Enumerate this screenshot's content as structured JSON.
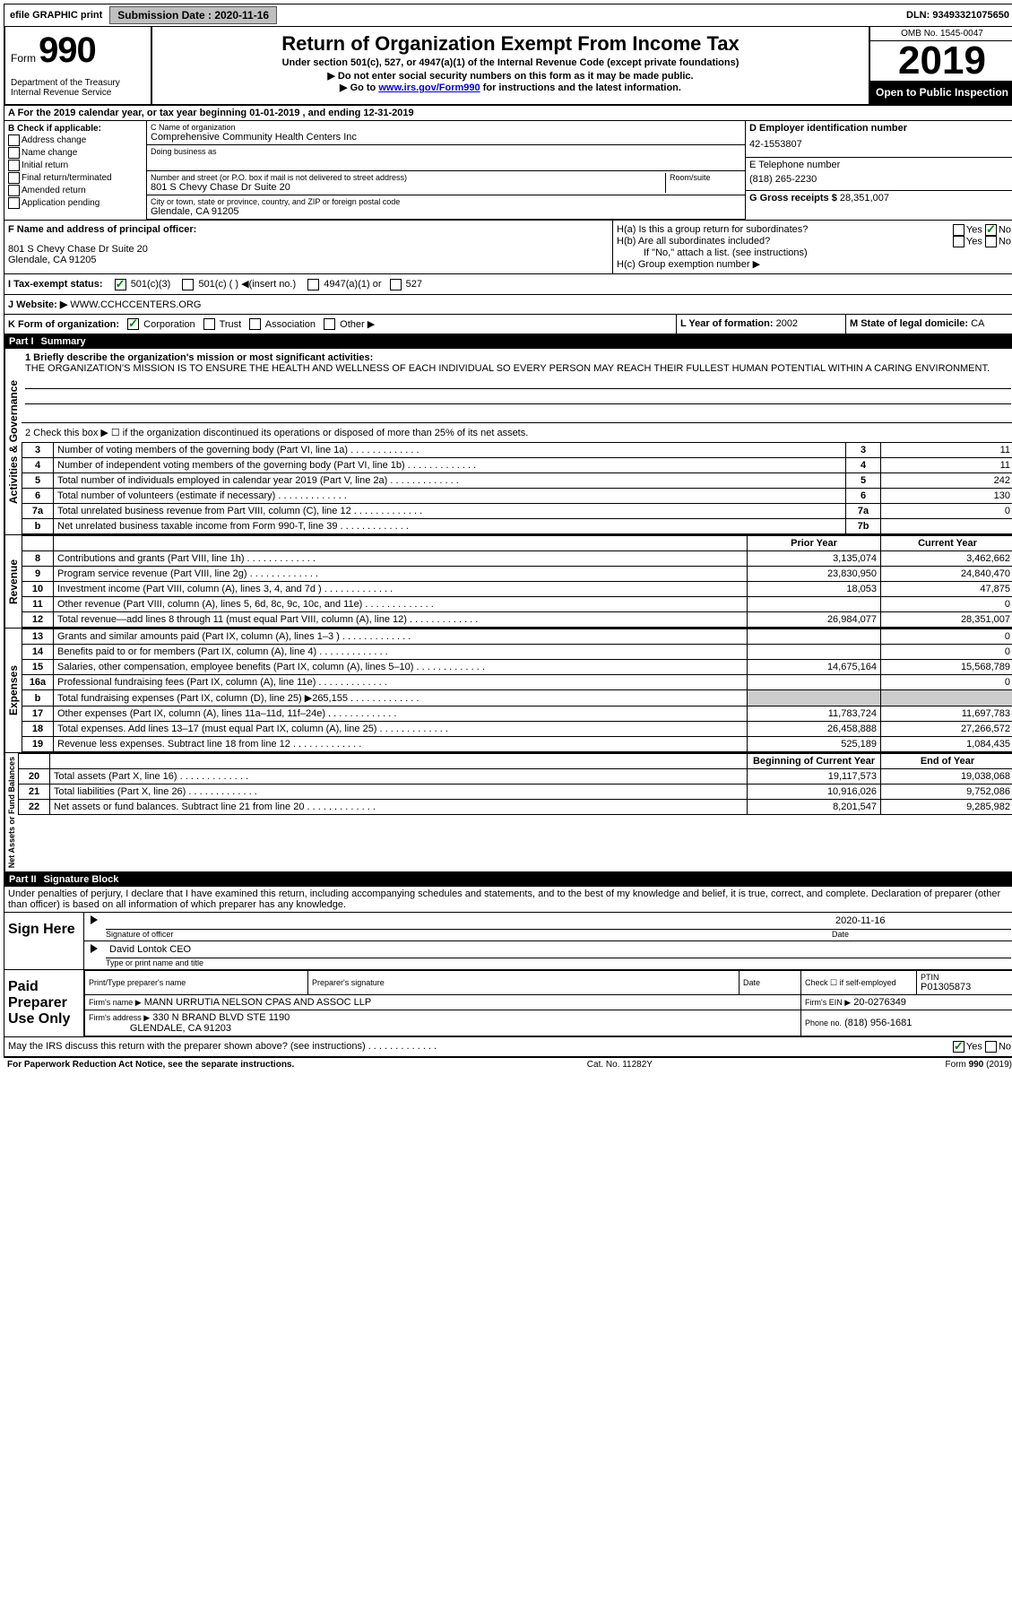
{
  "topbar": {
    "efile": "efile GRAPHIC print",
    "sub_label": "Submission Date :",
    "sub_date": "2020-11-16",
    "dln_label": "DLN:",
    "dln": "93493321075650"
  },
  "header": {
    "form_prefix": "Form",
    "form_num": "990",
    "dept": "Department of the Treasury\nInternal Revenue Service",
    "title": "Return of Organization Exempt From Income Tax",
    "sub1": "Under section 501(c), 527, or 4947(a)(1) of the Internal Revenue Code (except private foundations)",
    "sub2": "▶ Do not enter social security numbers on this form as it may be made public.",
    "sub3_pre": "▶ Go to ",
    "sub3_link": "www.irs.gov/Form990",
    "sub3_post": " for instructions and the latest information.",
    "omb": "OMB No. 1545-0047",
    "year": "2019",
    "inspect": "Open to Public Inspection"
  },
  "lineA": "A For the 2019 calendar year, or tax year beginning 01-01-2019   , and ending 12-31-2019",
  "boxB": {
    "title": "B Check if applicable:",
    "items": [
      "Address change",
      "Name change",
      "Initial return",
      "Final return/terminated",
      "Amended return",
      "Application pending"
    ]
  },
  "boxC": {
    "name_label": "C Name of organization",
    "name": "Comprehensive Community Health Centers Inc",
    "dba_label": "Doing business as",
    "addr_label": "Number and street (or P.O. box if mail is not delivered to street address)",
    "room_label": "Room/suite",
    "addr": "801 S Chevy Chase Dr Suite 20",
    "city_label": "City or town, state or province, country, and ZIP or foreign postal code",
    "city": "Glendale, CA  91205"
  },
  "boxD": {
    "label": "D Employer identification number",
    "val": "42-1553807"
  },
  "boxE": {
    "label": "E Telephone number",
    "val": "(818) 265-2230"
  },
  "boxG": {
    "label": "G Gross receipts $",
    "val": "28,351,007"
  },
  "boxF": {
    "label": "F  Name and address of principal officer:",
    "addr1": "801 S Chevy Chase Dr Suite 20",
    "addr2": "Glendale, CA  91205"
  },
  "boxH": {
    "a": "H(a)  Is this a group return for subordinates?",
    "b": "H(b)  Are all subordinates included?",
    "b_note": "If \"No,\" attach a list. (see instructions)",
    "c": "H(c)  Group exemption number ▶"
  },
  "boxI": {
    "label": "I  Tax-exempt status:",
    "opts": [
      "501(c)(3)",
      "501(c) (  ) ◀(insert no.)",
      "4947(a)(1) or",
      "527"
    ]
  },
  "boxJ": {
    "label": "J  Website: ▶",
    "val": "WWW.CCHCCENTERS.ORG"
  },
  "boxK": {
    "label": "K Form of organization:",
    "opts": [
      "Corporation",
      "Trust",
      "Association",
      "Other ▶"
    ]
  },
  "boxL": {
    "label": "L Year of formation:",
    "val": "2002"
  },
  "boxM": {
    "label": "M State of legal domicile:",
    "val": "CA"
  },
  "part1": {
    "header_num": "Part I",
    "header_title": "Summary",
    "q1_label": "1  Briefly describe the organization's mission or most significant activities:",
    "q1_text": "THE ORGANIZATION'S MISSION IS TO ENSURE THE HEALTH AND WELLNESS OF EACH INDIVIDUAL SO EVERY PERSON MAY REACH THEIR FULLEST HUMAN POTENTIAL WITHIN A CARING ENVIRONMENT.",
    "q2": "2   Check this box ▶ ☐  if the organization discontinued its operations or disposed of more than 25% of its net assets.",
    "gov_label": "Activities & Governance",
    "rev_label": "Revenue",
    "exp_label": "Expenses",
    "net_label": "Net Assets or Fund Balances",
    "prior_hdr": "Prior Year",
    "curr_hdr": "Current Year",
    "boy_hdr": "Beginning of Current Year",
    "eoy_hdr": "End of Year",
    "rows_gov": [
      {
        "n": "3",
        "d": "Number of voting members of the governing body (Part VI, line 1a)",
        "b": "3",
        "v": "11"
      },
      {
        "n": "4",
        "d": "Number of independent voting members of the governing body (Part VI, line 1b)",
        "b": "4",
        "v": "11"
      },
      {
        "n": "5",
        "d": "Total number of individuals employed in calendar year 2019 (Part V, line 2a)",
        "b": "5",
        "v": "242"
      },
      {
        "n": "6",
        "d": "Total number of volunteers (estimate if necessary)",
        "b": "6",
        "v": "130"
      },
      {
        "n": "7a",
        "d": "Total unrelated business revenue from Part VIII, column (C), line 12",
        "b": "7a",
        "v": "0"
      },
      {
        "n": "b",
        "d": "Net unrelated business taxable income from Form 990-T, line 39",
        "b": "7b",
        "v": ""
      }
    ],
    "rows_rev": [
      {
        "n": "8",
        "d": "Contributions and grants (Part VIII, line 1h)",
        "p": "3,135,074",
        "c": "3,462,662"
      },
      {
        "n": "9",
        "d": "Program service revenue (Part VIII, line 2g)",
        "p": "23,830,950",
        "c": "24,840,470"
      },
      {
        "n": "10",
        "d": "Investment income (Part VIII, column (A), lines 3, 4, and 7d )",
        "p": "18,053",
        "c": "47,875"
      },
      {
        "n": "11",
        "d": "Other revenue (Part VIII, column (A), lines 5, 6d, 8c, 9c, 10c, and 11e)",
        "p": "",
        "c": "0"
      },
      {
        "n": "12",
        "d": "Total revenue—add lines 8 through 11 (must equal Part VIII, column (A), line 12)",
        "p": "26,984,077",
        "c": "28,351,007"
      }
    ],
    "rows_exp": [
      {
        "n": "13",
        "d": "Grants and similar amounts paid (Part IX, column (A), lines 1–3 )",
        "p": "",
        "c": "0"
      },
      {
        "n": "14",
        "d": "Benefits paid to or for members (Part IX, column (A), line 4)",
        "p": "",
        "c": "0"
      },
      {
        "n": "15",
        "d": "Salaries, other compensation, employee benefits (Part IX, column (A), lines 5–10)",
        "p": "14,675,164",
        "c": "15,568,789"
      },
      {
        "n": "16a",
        "d": "Professional fundraising fees (Part IX, column (A), line 11e)",
        "p": "",
        "c": "0"
      },
      {
        "n": "b",
        "d": "Total fundraising expenses (Part IX, column (D), line 25) ▶265,155",
        "p": "shade",
        "c": "shade"
      },
      {
        "n": "17",
        "d": "Other expenses (Part IX, column (A), lines 11a–11d, 11f–24e)",
        "p": "11,783,724",
        "c": "11,697,783"
      },
      {
        "n": "18",
        "d": "Total expenses. Add lines 13–17 (must equal Part IX, column (A), line 25)",
        "p": "26,458,888",
        "c": "27,266,572"
      },
      {
        "n": "19",
        "d": "Revenue less expenses. Subtract line 18 from line 12",
        "p": "525,189",
        "c": "1,084,435"
      }
    ],
    "rows_net": [
      {
        "n": "20",
        "d": "Total assets (Part X, line 16)",
        "p": "19,117,573",
        "c": "19,038,068"
      },
      {
        "n": "21",
        "d": "Total liabilities (Part X, line 26)",
        "p": "10,916,026",
        "c": "9,752,086"
      },
      {
        "n": "22",
        "d": "Net assets or fund balances. Subtract line 21 from line 20",
        "p": "8,201,547",
        "c": "9,285,982"
      }
    ]
  },
  "part2": {
    "header_num": "Part II",
    "header_title": "Signature Block",
    "declaration": "Under penalties of perjury, I declare that I have examined this return, including accompanying schedules and statements, and to the best of my knowledge and belief, it is true, correct, and complete. Declaration of preparer (other than officer) is based on all information of which preparer has any knowledge.",
    "sign_here": "Sign Here",
    "sig_officer": "Signature of officer",
    "sig_date": "2020-11-16",
    "date_label": "Date",
    "officer_name": "David Lontok CEO",
    "type_name": "Type or print name and title",
    "paid_prep": "Paid Preparer Use Only",
    "prep_name_label": "Print/Type preparer's name",
    "prep_sig_label": "Preparer's signature",
    "check_self": "Check ☐ if self-employed",
    "ptin_label": "PTIN",
    "ptin": "P01305873",
    "firm_name_label": "Firm's name   ▶",
    "firm_name": "MANN URRUTIA NELSON CPAS AND ASSOC LLP",
    "firm_ein_label": "Firm's EIN ▶",
    "firm_ein": "20-0276349",
    "firm_addr_label": "Firm's address ▶",
    "firm_addr1": "330 N BRAND BLVD STE 1190",
    "firm_addr2": "GLENDALE, CA  91203",
    "phone_label": "Phone no.",
    "phone": "(818) 956-1681",
    "discuss": "May the IRS discuss this return with the preparer shown above? (see instructions)",
    "yes": "Yes",
    "no": "No"
  },
  "footer": {
    "left": "For Paperwork Reduction Act Notice, see the separate instructions.",
    "mid": "Cat. No. 11282Y",
    "right": "Form 990 (2019)"
  }
}
